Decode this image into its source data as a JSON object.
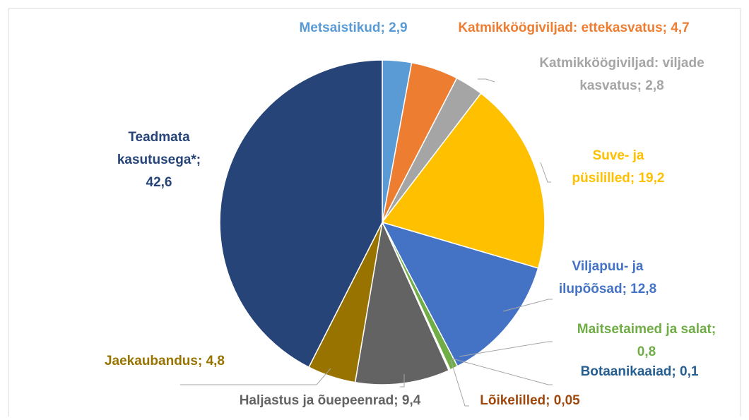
{
  "chart_data": {
    "type": "pie",
    "labels": [
      "Metsaistikud; 2,9",
      "Katmikköögiviljad: ettekasvatus; 4,7",
      "Katmikköögiviljad: viljade\nkasvatus; 2,8",
      "Suve- ja\npüsililled; 19,2",
      "Viljapuu- ja\nilupõõsad; 12,8",
      "Maitsetaimed ja salat;\n0,8",
      "Botaanikaaiad; 0,1",
      "Lõikelilled; 0,05",
      "Haljastus ja õuepeenrad; 9,4",
      "Jaekaubandus; 4,8",
      "Teadmata\nkasutusega*;\n42,6"
    ],
    "values": [
      2.9,
      4.7,
      2.8,
      19.2,
      12.8,
      0.8,
      0.1,
      0.05,
      9.4,
      4.8,
      42.6
    ],
    "colors": [
      "#5b9bd5",
      "#ed7d31",
      "#a5a5a5",
      "#ffc000",
      "#4472c4",
      "#70ad47",
      "#255e91",
      "#9e480e",
      "#636363",
      "#997300",
      "#264478"
    ]
  }
}
